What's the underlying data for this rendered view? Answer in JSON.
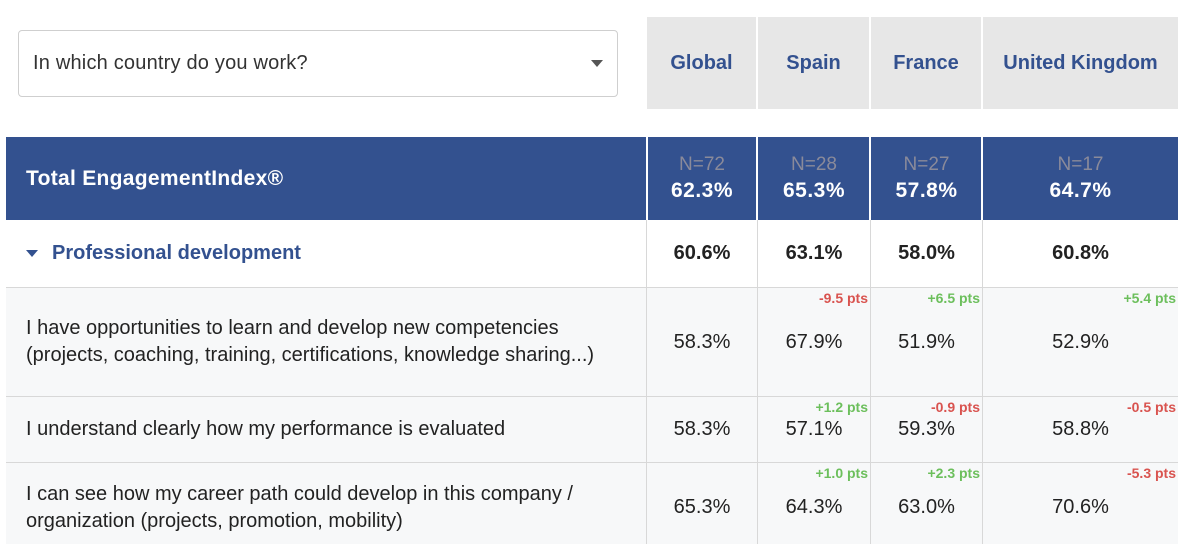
{
  "filter": {
    "question": "In which country do you work?"
  },
  "columns": [
    "Global",
    "Spain",
    "France",
    "United Kingdom"
  ],
  "total": {
    "label": "Total EngagementIndex®",
    "n": [
      "N=72",
      "N=28",
      "N=27",
      "N=17"
    ],
    "values": [
      "62.3%",
      "65.3%",
      "57.8%",
      "64.7%"
    ]
  },
  "section": {
    "label": "Professional development",
    "values": [
      "60.6%",
      "63.1%",
      "58.0%",
      "60.8%"
    ]
  },
  "rows": [
    {
      "label": "I have opportunities to learn and develop new competencies (projects, coaching, training, certifications, knowledge sharing...)",
      "values": [
        "58.3%",
        "67.9%",
        "51.9%",
        "52.9%"
      ],
      "deltas": [
        "-9.5 pts",
        "+6.5 pts",
        "+5.4 pts"
      ]
    },
    {
      "label": "I understand clearly how my performance is evaluated",
      "values": [
        "58.3%",
        "57.1%",
        "59.3%",
        "58.8%"
      ],
      "deltas": [
        "+1.2 pts",
        "-0.9 pts",
        "-0.5 pts"
      ]
    },
    {
      "label": "I can see how my career path could develop in this company / organization (projects, promotion, mobility)",
      "values": [
        "65.3%",
        "64.3%",
        "63.0%",
        "70.6%"
      ],
      "deltas": [
        "+1.0 pts",
        "+2.3 pts",
        "-5.3 pts"
      ]
    }
  ],
  "colors": {
    "brand": "#33518f",
    "positive": "#6cbf5c",
    "negative": "#d9534f"
  }
}
